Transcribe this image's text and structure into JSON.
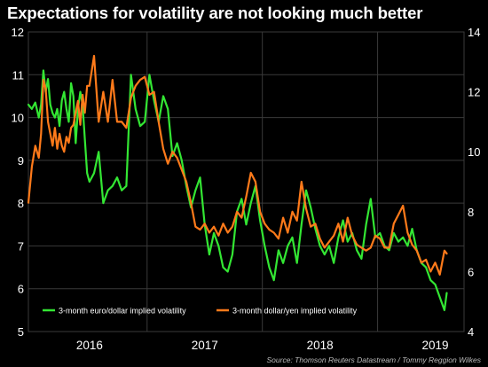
{
  "chart_data": {
    "type": "line",
    "title": "Expectations for volatility are not looking much better",
    "source": "Source: Thomson Reuters Datastream / Tommy Reggion Wilkes",
    "x_labels": [
      "2016",
      "2017",
      "2018",
      "2019"
    ],
    "x_label_positions": [
      2016.0,
      2017.0,
      2018.0,
      2019.0
    ],
    "xlim": [
      2015.47,
      2019.25
    ],
    "y_left": {
      "ylim": [
        5,
        12
      ],
      "ticks": [
        5,
        6,
        7,
        8,
        9,
        10,
        11,
        12
      ]
    },
    "y_right": {
      "ylim": [
        4,
        14
      ],
      "ticks": [
        4,
        6,
        8,
        10,
        12,
        14
      ]
    },
    "grid": true,
    "legend_position": "bottom-left",
    "colors": {
      "background": "#000000",
      "grid": "#3a3a3a",
      "eur": "#33e633",
      "yen": "#ff7a1a"
    },
    "series": [
      {
        "name": "3-month euro/dollar implied volatility",
        "axis": "left",
        "color": "#33e633",
        "x": [
          2015.47,
          2015.5,
          2015.53,
          2015.56,
          2015.58,
          2015.6,
          2015.62,
          2015.64,
          2015.66,
          2015.68,
          2015.7,
          2015.72,
          2015.74,
          2015.76,
          2015.78,
          2015.8,
          2015.82,
          2015.84,
          2015.86,
          2015.88,
          2015.9,
          2015.92,
          2015.94,
          2015.96,
          2015.98,
          2016.0,
          2016.04,
          2016.08,
          2016.12,
          2016.16,
          2016.2,
          2016.24,
          2016.28,
          2016.32,
          2016.36,
          2016.4,
          2016.44,
          2016.48,
          2016.52,
          2016.56,
          2016.6,
          2016.64,
          2016.68,
          2016.72,
          2016.76,
          2016.8,
          2016.84,
          2016.88,
          2016.92,
          2016.96,
          2017.0,
          2017.04,
          2017.08,
          2017.12,
          2017.16,
          2017.2,
          2017.24,
          2017.28,
          2017.32,
          2017.36,
          2017.4,
          2017.44,
          2017.48,
          2017.52,
          2017.56,
          2017.6,
          2017.64,
          2017.68,
          2017.72,
          2017.76,
          2017.8,
          2017.84,
          2017.88,
          2017.92,
          2017.96,
          2018.0,
          2018.04,
          2018.08,
          2018.12,
          2018.16,
          2018.2,
          2018.24,
          2018.28,
          2018.32,
          2018.36,
          2018.4,
          2018.44,
          2018.48,
          2018.52,
          2018.56,
          2018.6,
          2018.64,
          2018.68,
          2018.72,
          2018.76,
          2018.8,
          2018.84,
          2018.88,
          2018.92,
          2018.96,
          2019.0,
          2019.04,
          2019.08,
          2019.1
        ],
        "values": [
          10.3,
          10.2,
          10.35,
          10.0,
          10.3,
          11.1,
          10.6,
          10.9,
          10.3,
          10.1,
          10.0,
          10.2,
          9.8,
          10.4,
          10.6,
          10.2,
          9.9,
          10.8,
          10.5,
          9.4,
          10.2,
          10.6,
          10.3,
          9.5,
          8.7,
          8.5,
          8.7,
          9.2,
          8.0,
          8.3,
          8.4,
          8.6,
          8.3,
          8.4,
          11.0,
          10.2,
          9.8,
          9.9,
          11.0,
          10.4,
          9.9,
          10.5,
          10.2,
          9.1,
          9.4,
          9.0,
          8.4,
          7.9,
          8.3,
          8.6,
          7.5,
          6.8,
          7.3,
          7.0,
          6.5,
          6.4,
          6.8,
          7.8,
          8.1,
          7.5,
          8.0,
          8.4,
          7.6,
          7.0,
          6.5,
          6.2,
          6.9,
          6.6,
          7.0,
          7.2,
          6.6,
          7.5,
          8.3,
          7.9,
          7.4,
          7.0,
          6.8,
          7.0,
          6.6,
          7.2,
          7.6,
          7.1,
          7.3,
          6.9,
          6.7,
          7.5,
          8.1,
          7.2,
          7.3,
          7.0,
          6.9,
          7.3,
          7.1,
          7.2,
          7.0,
          7.4,
          6.9,
          6.6,
          6.5,
          6.2,
          6.1,
          5.8,
          5.5,
          5.9
        ]
      },
      {
        "name": "3-month dollar/yen implied volatility",
        "axis": "right",
        "color": "#ff7a1a",
        "x": [
          2015.47,
          2015.5,
          2015.53,
          2015.56,
          2015.58,
          2015.6,
          2015.62,
          2015.64,
          2015.66,
          2015.68,
          2015.7,
          2015.72,
          2015.74,
          2015.76,
          2015.78,
          2015.8,
          2015.82,
          2015.84,
          2015.86,
          2015.88,
          2015.9,
          2015.92,
          2015.94,
          2015.96,
          2015.98,
          2016.0,
          2016.04,
          2016.08,
          2016.12,
          2016.16,
          2016.2,
          2016.24,
          2016.28,
          2016.32,
          2016.36,
          2016.4,
          2016.44,
          2016.48,
          2016.52,
          2016.56,
          2016.6,
          2016.64,
          2016.68,
          2016.72,
          2016.76,
          2016.8,
          2016.84,
          2016.88,
          2016.92,
          2016.96,
          2017.0,
          2017.04,
          2017.08,
          2017.12,
          2017.16,
          2017.2,
          2017.24,
          2017.28,
          2017.32,
          2017.36,
          2017.4,
          2017.44,
          2017.48,
          2017.52,
          2017.56,
          2017.6,
          2017.64,
          2017.68,
          2017.72,
          2017.76,
          2017.8,
          2017.84,
          2017.88,
          2017.92,
          2017.96,
          2018.0,
          2018.04,
          2018.08,
          2018.12,
          2018.16,
          2018.2,
          2018.24,
          2018.28,
          2018.32,
          2018.36,
          2018.4,
          2018.44,
          2018.48,
          2018.52,
          2018.56,
          2018.6,
          2018.64,
          2018.68,
          2018.72,
          2018.76,
          2018.8,
          2018.84,
          2018.88,
          2018.92,
          2018.96,
          2019.0,
          2019.04,
          2019.08,
          2019.1
        ],
        "values": [
          8.3,
          9.5,
          10.2,
          9.8,
          10.6,
          12.4,
          12.1,
          11.0,
          10.6,
          10.2,
          10.8,
          10.1,
          10.6,
          10.2,
          10.0,
          10.5,
          10.3,
          10.8,
          10.9,
          11.3,
          11.7,
          10.9,
          11.9,
          11.3,
          12.2,
          12.2,
          13.2,
          11.0,
          12.0,
          11.0,
          12.4,
          11.0,
          11.0,
          10.8,
          11.8,
          12.2,
          12.4,
          12.5,
          11.9,
          12.0,
          11.0,
          10.1,
          9.6,
          10.0,
          9.8,
          9.4,
          9.0,
          8.3,
          7.5,
          7.4,
          7.6,
          7.3,
          7.5,
          7.2,
          7.6,
          7.3,
          7.5,
          8.0,
          7.8,
          8.5,
          9.3,
          9.0,
          8.0,
          7.6,
          7.4,
          7.3,
          7.1,
          7.8,
          7.3,
          8.0,
          7.7,
          9.0,
          8.1,
          7.5,
          7.6,
          7.1,
          6.8,
          7.0,
          7.2,
          7.6,
          7.0,
          7.8,
          7.2,
          6.9,
          6.8,
          6.7,
          6.8,
          7.2,
          7.1,
          6.8,
          6.8,
          7.6,
          7.9,
          8.2,
          7.3,
          6.9,
          6.7,
          6.3,
          6.4,
          6.0,
          6.3,
          5.9,
          6.7,
          6.6
        ]
      }
    ]
  }
}
